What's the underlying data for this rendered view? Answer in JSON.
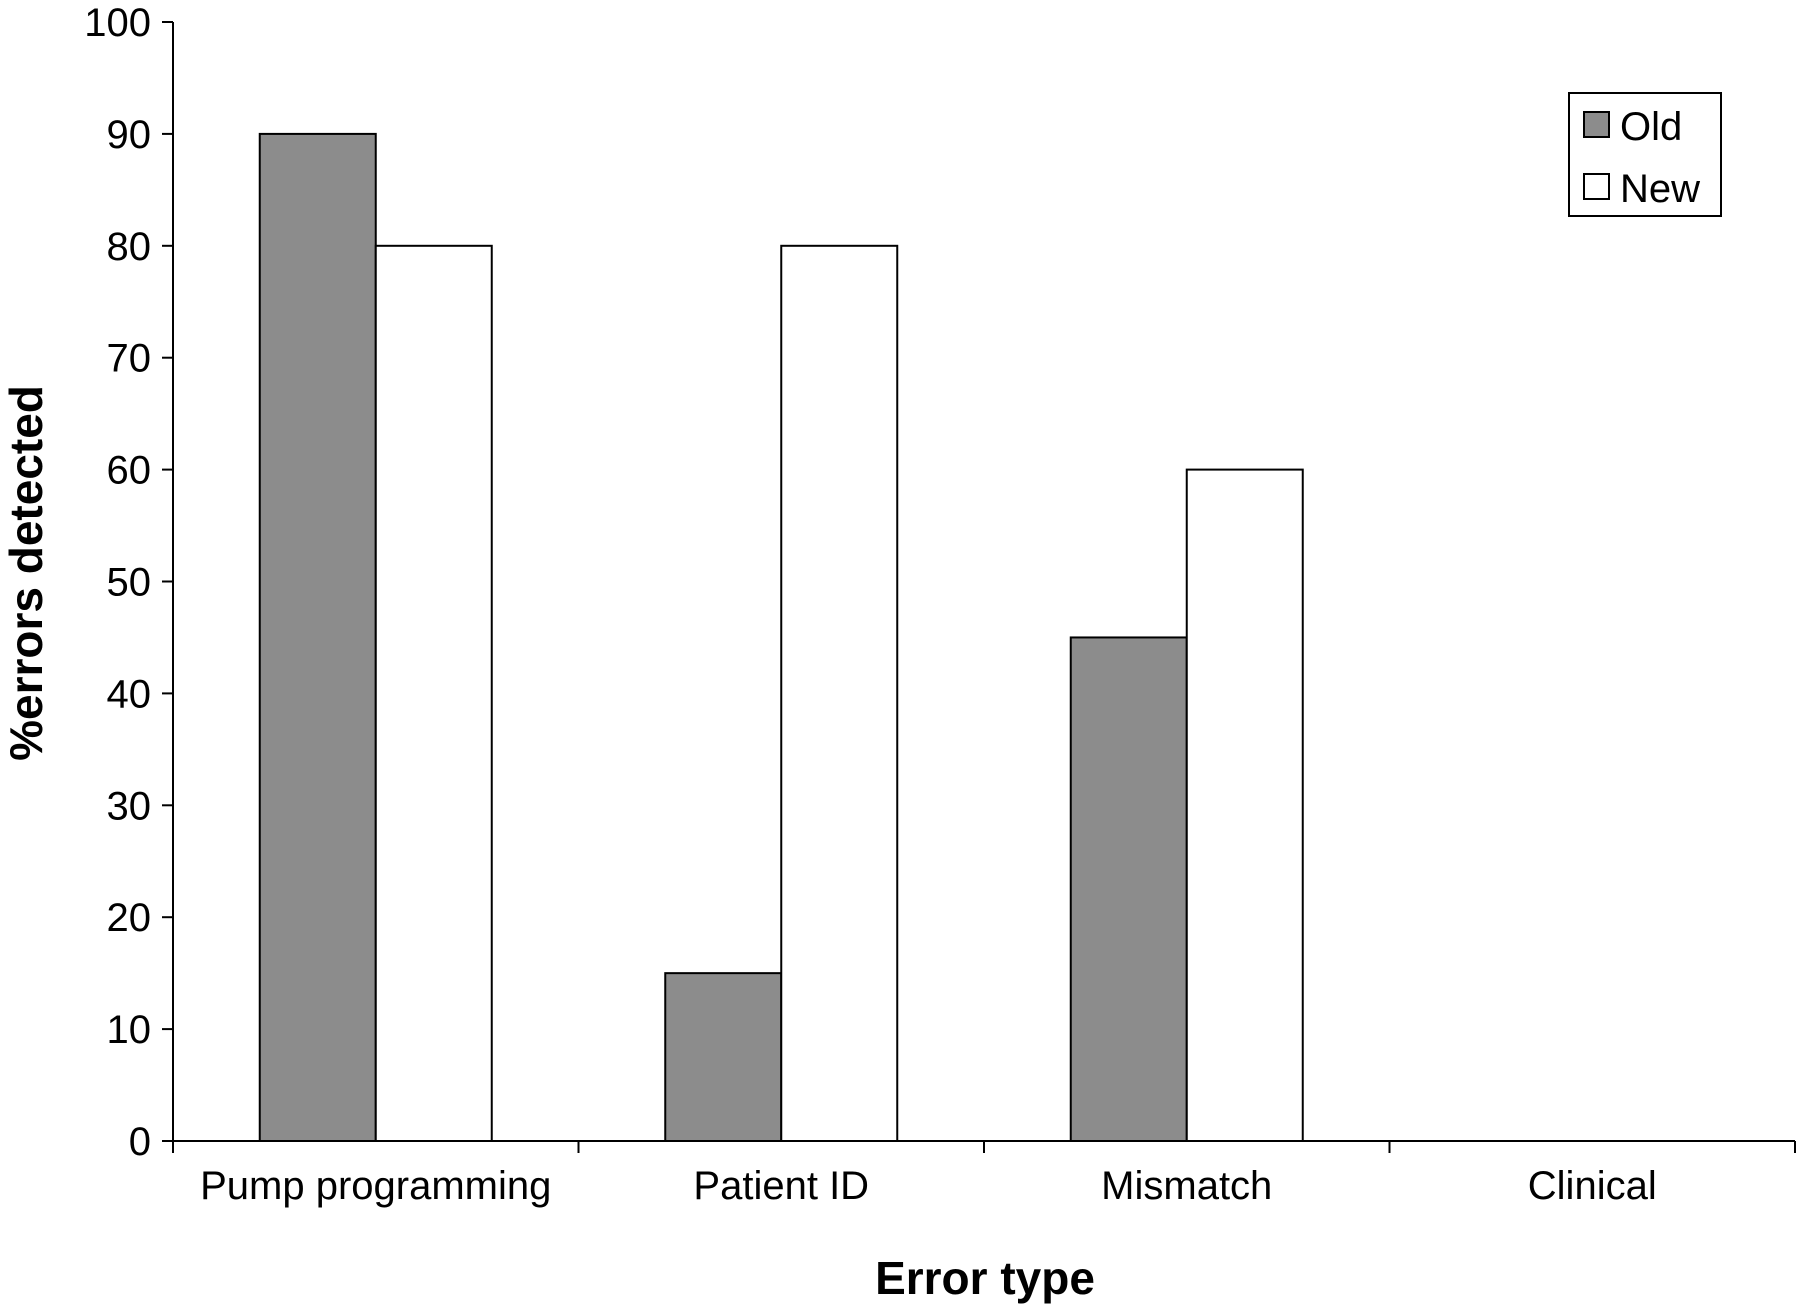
{
  "chart_data": {
    "type": "bar",
    "title": "",
    "xlabel": "Error type",
    "ylabel": "%errors detected",
    "categories": [
      "Pump programming",
      "Patient ID",
      "Mismatch",
      "Clinical"
    ],
    "series": [
      {
        "name": "Old",
        "values": [
          90,
          15,
          45,
          0
        ],
        "color": "#8c8c8c"
      },
      {
        "name": "New",
        "values": [
          80,
          80,
          60,
          0
        ],
        "color": "#ffffff"
      }
    ],
    "ylim": [
      0,
      100
    ],
    "yticks": [
      0,
      10,
      20,
      30,
      40,
      50,
      60,
      70,
      80,
      90,
      100
    ],
    "grid": false,
    "legend": {
      "placement": "top-right",
      "entries": [
        "Old",
        "New"
      ]
    },
    "colors": {
      "axis": "#000000",
      "bar_stroke": "#000000"
    }
  }
}
